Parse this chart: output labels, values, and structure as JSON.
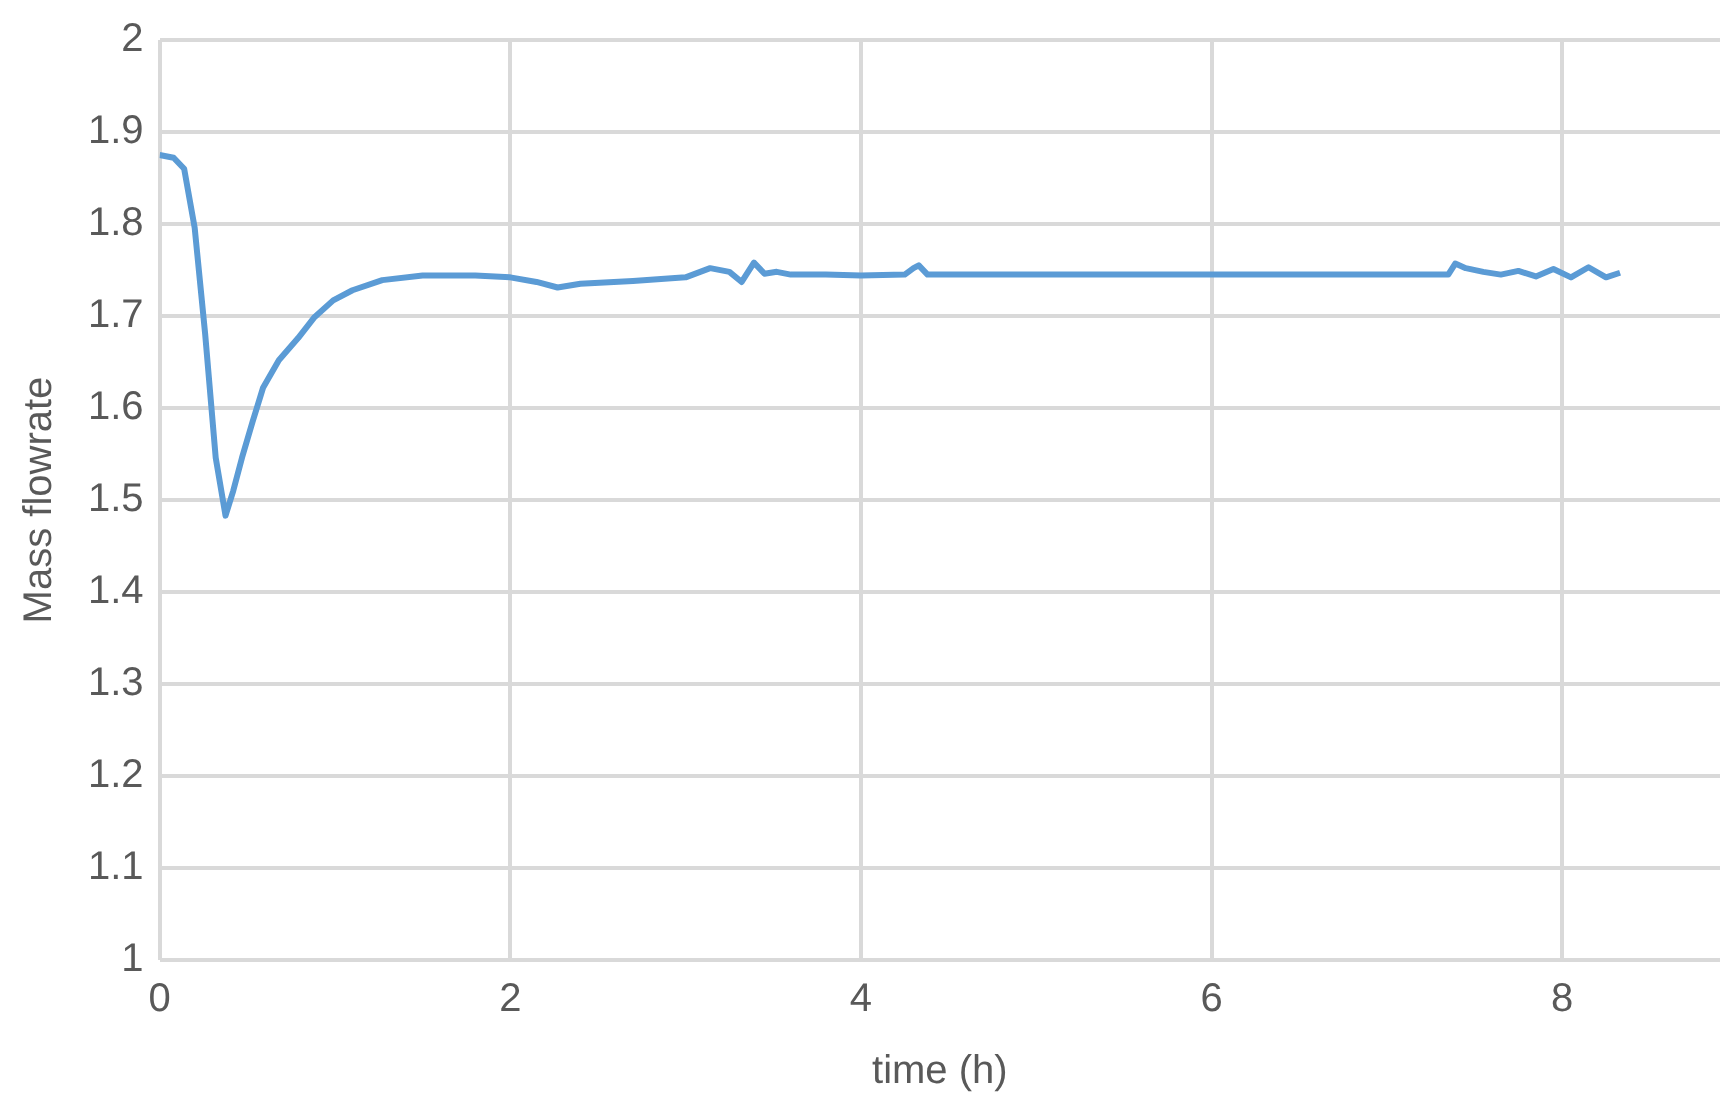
{
  "chart_data": {
    "type": "line",
    "xlabel": "time (h)",
    "ylabel": "Mass flowrate",
    "xlim": [
      0,
      8.9
    ],
    "xticks": [
      0,
      2,
      4,
      6,
      8
    ],
    "ylim": [
      1,
      2
    ],
    "yticks": [
      1,
      1.1,
      1.2,
      1.3,
      1.4,
      1.5,
      1.6,
      1.7,
      1.8,
      1.9,
      2
    ],
    "grid": true,
    "legend": false,
    "marker": "none",
    "line_style": "solid",
    "series": [
      {
        "color": "#5b9bd5",
        "x": [
          0,
          0.08,
          0.14,
          0.2,
          0.26,
          0.32,
          0.376,
          0.42,
          0.47,
          0.53,
          0.59,
          0.68,
          0.79,
          0.88,
          0.99,
          1.1,
          1.27,
          1.5,
          1.8,
          2.0,
          2.15,
          2.27,
          2.4,
          2.7,
          3.0,
          3.14,
          3.25,
          3.32,
          3.39,
          3.45,
          3.52,
          3.6,
          3.8,
          4.0,
          4.25,
          4.3,
          4.33,
          4.38,
          4.5,
          5.0,
          6.0,
          7.0,
          7.35,
          7.39,
          7.45,
          7.55,
          7.65,
          7.75,
          7.85,
          7.95,
          8.05,
          8.15,
          8.25,
          8.33
        ],
        "values": [
          1.875,
          1.872,
          1.86,
          1.796,
          1.68,
          1.546,
          1.483,
          1.51,
          1.546,
          1.585,
          1.622,
          1.652,
          1.676,
          1.698,
          1.717,
          1.728,
          1.739,
          1.744,
          1.744,
          1.742,
          1.737,
          1.731,
          1.735,
          1.738,
          1.742,
          1.752,
          1.748,
          1.737,
          1.758,
          1.746,
          1.748,
          1.745,
          1.745,
          1.744,
          1.745,
          1.752,
          1.755,
          1.745,
          1.745,
          1.745,
          1.745,
          1.745,
          1.745,
          1.757,
          1.752,
          1.748,
          1.745,
          1.749,
          1.743,
          1.751,
          1.742,
          1.753,
          1.742,
          1.747
        ]
      }
    ]
  }
}
